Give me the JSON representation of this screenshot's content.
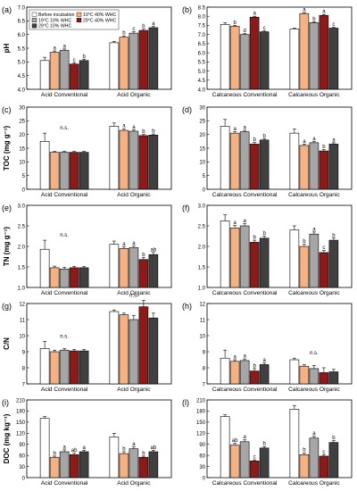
{
  "legend": {
    "entries": [
      {
        "label": "Before incubation",
        "color": "#ffffff"
      },
      {
        "label": "19°C 10% WHC",
        "color": "#a6a6a6"
      },
      {
        "label": "29°C 10% WHC",
        "color": "#404040"
      },
      {
        "label": "19°C 40% WHC",
        "color": "#f4b183"
      },
      {
        "label": "29°C 40% WHC",
        "color": "#8b1a1a"
      }
    ]
  },
  "chart_data": [
    {
      "panel": "(a)",
      "type": "bar",
      "ylabel": "pH",
      "ylim": [
        4.0,
        7.0
      ],
      "yticks": [
        "4.0",
        "4.5",
        "5.0",
        "5.5",
        "6.0",
        "6.5",
        "7.0"
      ],
      "categories": [
        "Acid Conventional",
        "Acid Organic"
      ],
      "center_note": "",
      "series": [
        {
          "name": "Before incubation",
          "values": [
            5.05,
            5.7
          ],
          "errors": [
            0.12,
            0.05
          ],
          "letters": [
            "",
            ""
          ]
        },
        {
          "name": "19°C 40% WHC",
          "values": [
            5.35,
            5.9
          ],
          "errors": [
            0.05,
            0.05
          ],
          "letters": [
            "a",
            "b"
          ]
        },
        {
          "name": "19°C 10% WHC",
          "values": [
            5.42,
            6.05
          ],
          "errors": [
            0.05,
            0.05
          ],
          "letters": [
            "a",
            "c"
          ]
        },
        {
          "name": "29°C 40% WHC",
          "values": [
            4.92,
            6.15
          ],
          "errors": [
            0.05,
            0.05
          ],
          "letters": [
            "c",
            "b"
          ]
        },
        {
          "name": "29°C 10% WHC",
          "values": [
            5.05,
            6.25
          ],
          "errors": [
            0.05,
            0.05
          ],
          "letters": [
            "b",
            "a"
          ]
        }
      ]
    },
    {
      "panel": "(b)",
      "type": "bar",
      "ylabel": "",
      "ylim": [
        4.0,
        8.5
      ],
      "yticks": [
        "4.0",
        "4.5",
        "5.0",
        "5.5",
        "6.0",
        "6.5",
        "7.0",
        "7.5",
        "8.0",
        "8.5"
      ],
      "categories": [
        "Calcareous Conventional",
        "Calcareous Organic"
      ],
      "center_note": "",
      "series": [
        {
          "name": "Before incubation",
          "values": [
            7.55,
            7.3
          ],
          "errors": [
            0.1,
            0.05
          ],
          "letters": [
            "",
            ""
          ]
        },
        {
          "name": "19°C 40% WHC",
          "values": [
            7.45,
            8.15
          ],
          "errors": [
            0.05,
            0.05
          ],
          "letters": [
            "b",
            "a"
          ]
        },
        {
          "name": "19°C 10% WHC",
          "values": [
            7.0,
            7.65
          ],
          "errors": [
            0.05,
            0.05
          ],
          "letters": [
            "d",
            "b"
          ]
        },
        {
          "name": "29°C 40% WHC",
          "values": [
            7.95,
            8.05
          ],
          "errors": [
            0.05,
            0.05
          ],
          "letters": [
            "a",
            "a"
          ]
        },
        {
          "name": "29°C 10% WHC",
          "values": [
            7.15,
            7.35
          ],
          "errors": [
            0.05,
            0.05
          ],
          "letters": [
            "c",
            "c"
          ]
        }
      ]
    },
    {
      "panel": "(c)",
      "type": "bar",
      "ylabel": "TOC (mg g⁻¹)",
      "ylim": [
        0,
        30
      ],
      "yticks": [
        "0",
        "5",
        "10",
        "15",
        "20",
        "25",
        "30"
      ],
      "categories": [
        "Acid Conventional",
        "Acid Organic"
      ],
      "center_note": "n.s.",
      "series": [
        {
          "name": "Before incubation",
          "values": [
            17.5,
            23.0
          ],
          "errors": [
            3.0,
            1.2
          ],
          "letters": [
            "",
            ""
          ]
        },
        {
          "name": "19°C 40% WHC",
          "values": [
            13.5,
            21.5
          ],
          "errors": [
            0.3,
            0.6
          ],
          "letters": [
            "",
            "a"
          ]
        },
        {
          "name": "19°C 10% WHC",
          "values": [
            13.5,
            21.2
          ],
          "errors": [
            0.3,
            0.5
          ],
          "letters": [
            "",
            "a"
          ]
        },
        {
          "name": "29°C 40% WHC",
          "values": [
            13.5,
            19.6
          ],
          "errors": [
            0.3,
            0.4
          ],
          "letters": [
            "",
            "b"
          ]
        },
        {
          "name": "29°C 10% WHC",
          "values": [
            13.5,
            19.8
          ],
          "errors": [
            0.3,
            0.4
          ],
          "letters": [
            "",
            "b"
          ]
        }
      ]
    },
    {
      "panel": "(d)",
      "type": "bar",
      "ylabel": "",
      "ylim": [
        0,
        30
      ],
      "yticks": [
        "0",
        "5",
        "10",
        "15",
        "20",
        "25",
        "30"
      ],
      "categories": [
        "Calcareous Conventional",
        "Calcareous Organic"
      ],
      "center_note": "",
      "series": [
        {
          "name": "Before incubation",
          "values": [
            23.0,
            20.5
          ],
          "errors": [
            2.5,
            1.5
          ],
          "letters": [
            "",
            ""
          ]
        },
        {
          "name": "19°C 40% WHC",
          "values": [
            20.5,
            16.0
          ],
          "errors": [
            0.5,
            0.5
          ],
          "letters": [
            "a",
            "a"
          ]
        },
        {
          "name": "19°C 10% WHC",
          "values": [
            21.0,
            17.0
          ],
          "errors": [
            0.5,
            0.5
          ],
          "letters": [
            "a",
            "a"
          ]
        },
        {
          "name": "29°C 40% WHC",
          "values": [
            16.5,
            14.0
          ],
          "errors": [
            0.6,
            0.5
          ],
          "letters": [
            "b",
            "b"
          ]
        },
        {
          "name": "29°C 10% WHC",
          "values": [
            18.0,
            16.5
          ],
          "errors": [
            0.5,
            0.5
          ],
          "letters": [
            "b",
            "a"
          ]
        }
      ]
    },
    {
      "panel": "(e)",
      "type": "bar",
      "ylabel": "TN (mg g⁻¹)",
      "ylim": [
        1.0,
        3.0
      ],
      "yticks": [
        "1.0",
        "1.5",
        "2.0",
        "2.5",
        "3.0"
      ],
      "categories": [
        "Acid Conventional",
        "Acid Organic"
      ],
      "center_note": "n.s.",
      "series": [
        {
          "name": "Before incubation",
          "values": [
            1.93,
            2.05
          ],
          "errors": [
            0.22,
            0.08
          ],
          "letters": [
            "",
            ""
          ]
        },
        {
          "name": "19°C 40% WHC",
          "values": [
            1.48,
            1.95
          ],
          "errors": [
            0.04,
            0.04
          ],
          "letters": [
            "",
            "a"
          ]
        },
        {
          "name": "19°C 10% WHC",
          "values": [
            1.45,
            1.97
          ],
          "errors": [
            0.04,
            0.04
          ],
          "letters": [
            "",
            "a"
          ]
        },
        {
          "name": "29°C 40% WHC",
          "values": [
            1.48,
            1.68
          ],
          "errors": [
            0.03,
            0.05
          ],
          "letters": [
            "",
            "b"
          ]
        },
        {
          "name": "29°C 10% WHC",
          "values": [
            1.48,
            1.8
          ],
          "errors": [
            0.03,
            0.05
          ],
          "letters": [
            "",
            "ab"
          ]
        }
      ]
    },
    {
      "panel": "(f)",
      "type": "bar",
      "ylabel": "",
      "ylim": [
        1.0,
        3.0
      ],
      "yticks": [
        "1.0",
        "1.5",
        "2.0",
        "2.5",
        "3.0"
      ],
      "categories": [
        "Calcareous Conventional",
        "Calcareous Organic"
      ],
      "center_note": "",
      "series": [
        {
          "name": "Before incubation",
          "values": [
            2.62,
            2.4
          ],
          "errors": [
            0.15,
            0.1
          ],
          "letters": [
            "",
            ""
          ]
        },
        {
          "name": "19°C 40% WHC",
          "values": [
            2.45,
            2.0
          ],
          "errors": [
            0.06,
            0.05
          ],
          "letters": [
            "a",
            "b"
          ]
        },
        {
          "name": "19°C 10% WHC",
          "values": [
            2.5,
            2.3
          ],
          "errors": [
            0.05,
            0.05
          ],
          "letters": [
            "a",
            "a"
          ]
        },
        {
          "name": "29°C 40% WHC",
          "values": [
            2.1,
            1.85
          ],
          "errors": [
            0.05,
            0.05
          ],
          "letters": [
            "b",
            "c"
          ]
        },
        {
          "name": "29°C 10% WHC",
          "values": [
            2.2,
            2.15
          ],
          "errors": [
            0.05,
            0.05
          ],
          "letters": [
            "b",
            "b"
          ]
        }
      ]
    },
    {
      "panel": "(g)",
      "type": "bar",
      "ylabel": "C/N",
      "ylim": [
        7,
        12
      ],
      "yticks": [
        "7",
        "8",
        "9",
        "10",
        "11",
        "12"
      ],
      "categories": [
        "Acid Conventional",
        "Acid Organic"
      ],
      "center_note": "n.s.",
      "series": [
        {
          "name": "Before incubation",
          "values": [
            9.2,
            11.5
          ],
          "errors": [
            0.45,
            0.1
          ],
          "letters": [
            "",
            ""
          ]
        },
        {
          "name": "19°C 40% WHC",
          "values": [
            9.0,
            11.3
          ],
          "errors": [
            0.1,
            0.1
          ],
          "letters": [
            "",
            ""
          ]
        },
        {
          "name": "19°C 10% WHC",
          "values": [
            9.1,
            11.0
          ],
          "errors": [
            0.1,
            0.25
          ],
          "letters": [
            "",
            ""
          ]
        },
        {
          "name": "29°C 40% WHC",
          "values": [
            9.05,
            11.8
          ],
          "errors": [
            0.1,
            0.4
          ],
          "letters": [
            "",
            ""
          ]
        },
        {
          "name": "29°C 10% WHC",
          "values": [
            9.05,
            11.1
          ],
          "errors": [
            0.1,
            0.3
          ],
          "letters": [
            "",
            ""
          ]
        }
      ],
      "annotations": [
        {
          "text": "n.s.",
          "category": 1
        }
      ]
    },
    {
      "panel": "(h)",
      "type": "bar",
      "ylabel": "",
      "ylim": [
        7,
        12
      ],
      "yticks": [
        "7",
        "8",
        "9",
        "10",
        "11",
        "12"
      ],
      "categories": [
        "Calcareous Conventional",
        "Calcareous Organic"
      ],
      "center_note": "n.s.",
      "series": [
        {
          "name": "Before incubation",
          "values": [
            8.6,
            8.5
          ],
          "errors": [
            0.5,
            0.1
          ],
          "letters": [
            "",
            ""
          ]
        },
        {
          "name": "19°C 40% WHC",
          "values": [
            8.4,
            8.1
          ],
          "errors": [
            0.1,
            0.1
          ],
          "letters": [
            "a",
            ""
          ]
        },
        {
          "name": "19°C 10% WHC",
          "values": [
            8.45,
            7.95
          ],
          "errors": [
            0.1,
            0.2
          ],
          "letters": [
            "a",
            ""
          ]
        },
        {
          "name": "29°C 40% WHC",
          "values": [
            7.8,
            7.7
          ],
          "errors": [
            0.15,
            0.3
          ],
          "letters": [
            "b",
            ""
          ]
        },
        {
          "name": "29°C 10% WHC",
          "values": [
            8.2,
            7.75
          ],
          "errors": [
            0.1,
            0.15
          ],
          "letters": [
            "a",
            ""
          ]
        }
      ]
    },
    {
      "panel": "(i)",
      "type": "bar",
      "ylabel": "DOC (mg kg⁻¹)",
      "ylim": [
        0,
        210
      ],
      "yticks": [
        "0",
        "30",
        "60",
        "90",
        "120",
        "150",
        "180",
        "210"
      ],
      "categories": [
        "Acid Conventional",
        "Acid Organic"
      ],
      "center_note": "",
      "series": [
        {
          "name": "Before incubation",
          "values": [
            160,
            110
          ],
          "errors": [
            5,
            10
          ],
          "letters": [
            "",
            ""
          ]
        },
        {
          "name": "19°C 40% WHC",
          "values": [
            55,
            65
          ],
          "errors": [
            3,
            5
          ],
          "letters": [
            "b",
            "b"
          ]
        },
        {
          "name": "19°C 10% WHC",
          "values": [
            70,
            78
          ],
          "errors": [
            5,
            5
          ],
          "letters": [
            "a",
            "a"
          ]
        },
        {
          "name": "29°C 40% WHC",
          "values": [
            62,
            55
          ],
          "errors": [
            4,
            3
          ],
          "letters": [
            "ab",
            "b"
          ]
        },
        {
          "name": "29°C 10% WHC",
          "values": [
            70,
            70
          ],
          "errors": [
            4,
            4
          ],
          "letters": [
            "a",
            "ab"
          ]
        }
      ]
    },
    {
      "panel": "(l)",
      "type": "bar",
      "ylabel": "",
      "ylim": [
        0,
        210
      ],
      "yticks": [
        "0",
        "30",
        "60",
        "90",
        "120",
        "150",
        "180",
        "210"
      ],
      "categories": [
        "Calcareous Conventional",
        "Calcareous Organic"
      ],
      "center_note": "",
      "series": [
        {
          "name": "Before incubation",
          "values": [
            165,
            185
          ],
          "errors": [
            5,
            10
          ],
          "letters": [
            "",
            ""
          ]
        },
        {
          "name": "19°C 40% WHC",
          "values": [
            88,
            62
          ],
          "errors": [
            5,
            5
          ],
          "letters": [
            "ab",
            "b"
          ]
        },
        {
          "name": "19°C 10% WHC",
          "values": [
            97,
            107
          ],
          "errors": [
            5,
            5
          ],
          "letters": [
            "a",
            "a"
          ]
        },
        {
          "name": "29°C 40% WHC",
          "values": [
            45,
            58
          ],
          "errors": [
            3,
            4
          ],
          "letters": [
            "c",
            "c"
          ]
        },
        {
          "name": "29°C 10% WHC",
          "values": [
            80,
            95
          ],
          "errors": [
            4,
            5
          ],
          "letters": [
            "b",
            "b"
          ]
        }
      ]
    }
  ]
}
